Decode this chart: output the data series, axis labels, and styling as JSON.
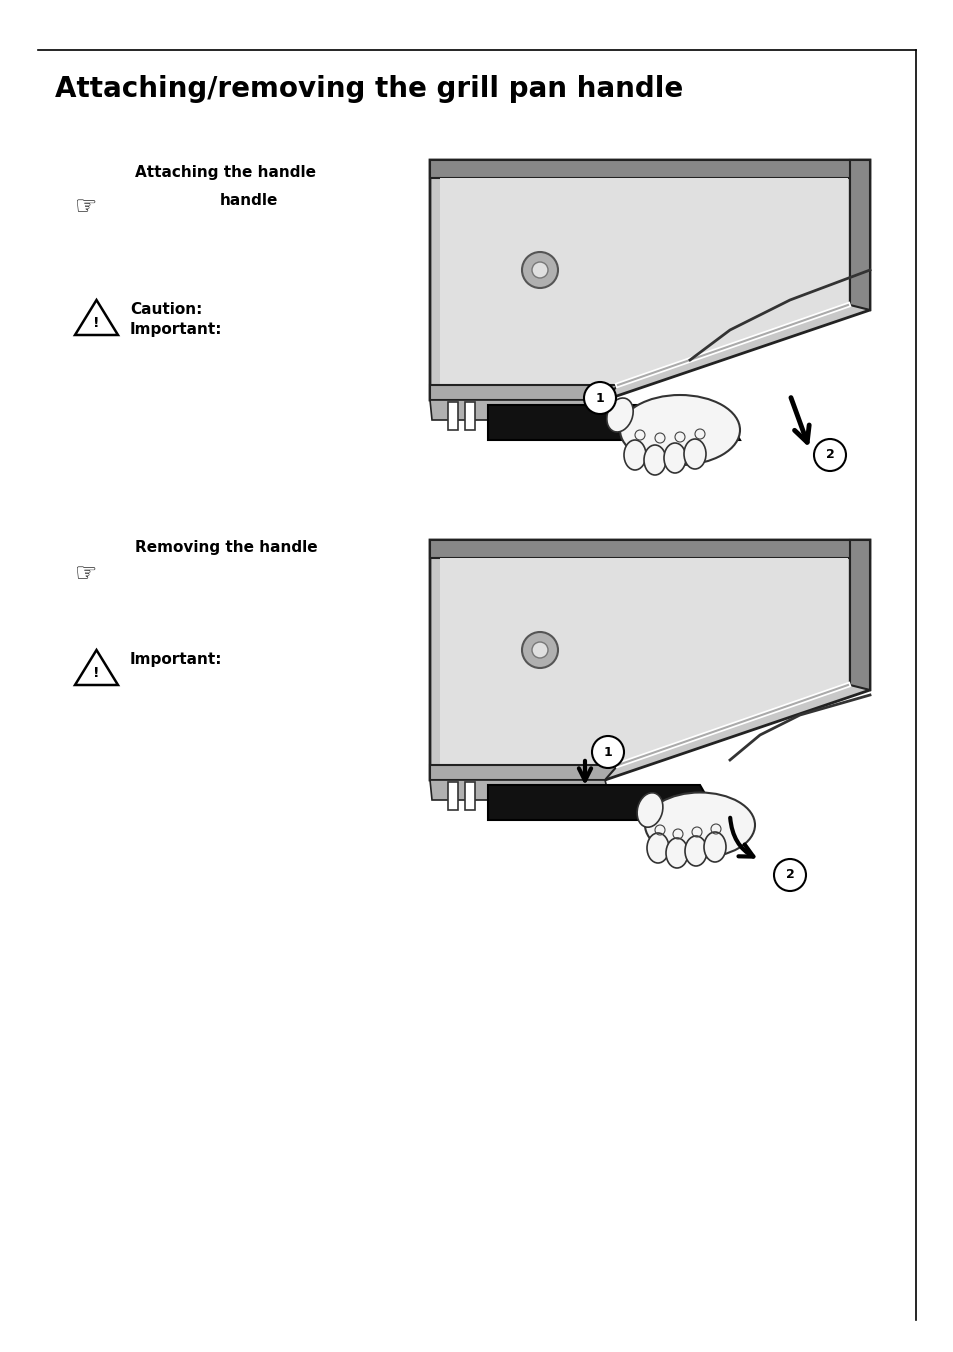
{
  "title": "Attaching/removing the grill pan handle",
  "title_fontsize": 20,
  "page_bg": "#ffffff",
  "border_color": "#000000",
  "section1_heading": "Attaching the handle",
  "section1_subheading": "handle",
  "caution_heading": "Caution:",
  "caution_subtext": "Important:",
  "section2_heading": "Removing the handle",
  "important2_heading": "Important:",
  "text_fontsize": 11,
  "bold_fontsize": 11
}
